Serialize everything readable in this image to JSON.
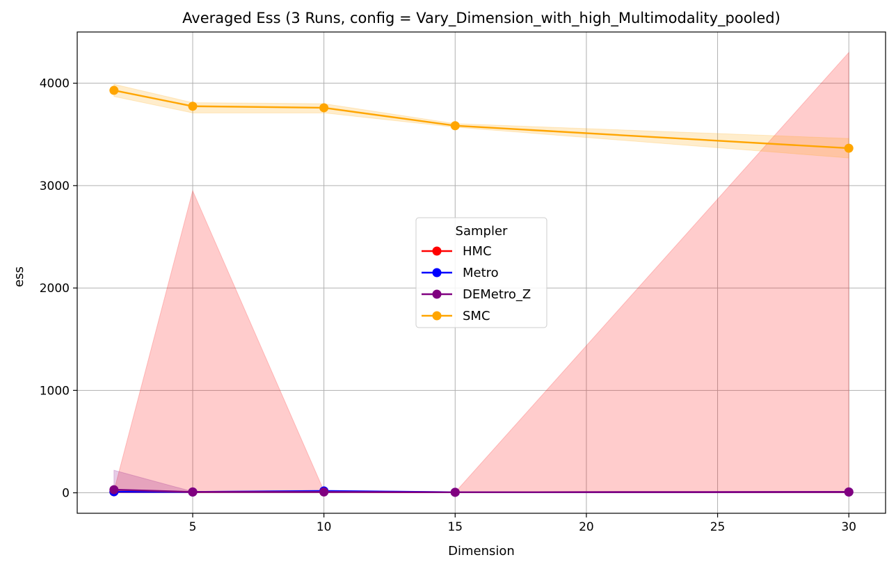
{
  "chart_data": {
    "type": "line",
    "title": "Averaged Ess (3 Runs, config = Vary_Dimension_with_high_Multimodality_pooled)",
    "xlabel": "Dimension",
    "ylabel": "ess",
    "x": [
      2,
      5,
      10,
      15,
      30
    ],
    "xlim": [
      0.6,
      31.4
    ],
    "ylim": [
      -200,
      4500
    ],
    "xticks": [
      5,
      10,
      15,
      20,
      25,
      30
    ],
    "yticks": [
      0,
      1000,
      2000,
      3000,
      4000
    ],
    "grid": true,
    "legend": {
      "title": "Sampler",
      "placement": "center"
    },
    "series": [
      {
        "name": "HMC",
        "color": "#ff0000",
        "values": [
          10,
          8,
          10,
          5,
          8
        ],
        "band_lower": [
          0,
          0,
          0,
          0,
          0
        ],
        "band_upper": [
          20,
          2950,
          20,
          5,
          4300
        ]
      },
      {
        "name": "Metro",
        "color": "#0000ff",
        "values": [
          10,
          8,
          18,
          5,
          8
        ],
        "band_lower": [
          5,
          5,
          12,
          3,
          5
        ],
        "band_upper": [
          15,
          12,
          25,
          8,
          12
        ]
      },
      {
        "name": "DEMetro_Z",
        "color": "#800080",
        "values": [
          30,
          8,
          8,
          5,
          8
        ],
        "band_lower": [
          0,
          3,
          3,
          2,
          3
        ],
        "band_upper": [
          220,
          12,
          12,
          8,
          12
        ]
      },
      {
        "name": "SMC",
        "color": "#ffa500",
        "values": [
          3930,
          3775,
          3760,
          3585,
          3365
        ],
        "band_lower": [
          3870,
          3710,
          3710,
          3570,
          3270
        ],
        "band_upper": [
          3990,
          3810,
          3800,
          3605,
          3460
        ]
      }
    ]
  }
}
